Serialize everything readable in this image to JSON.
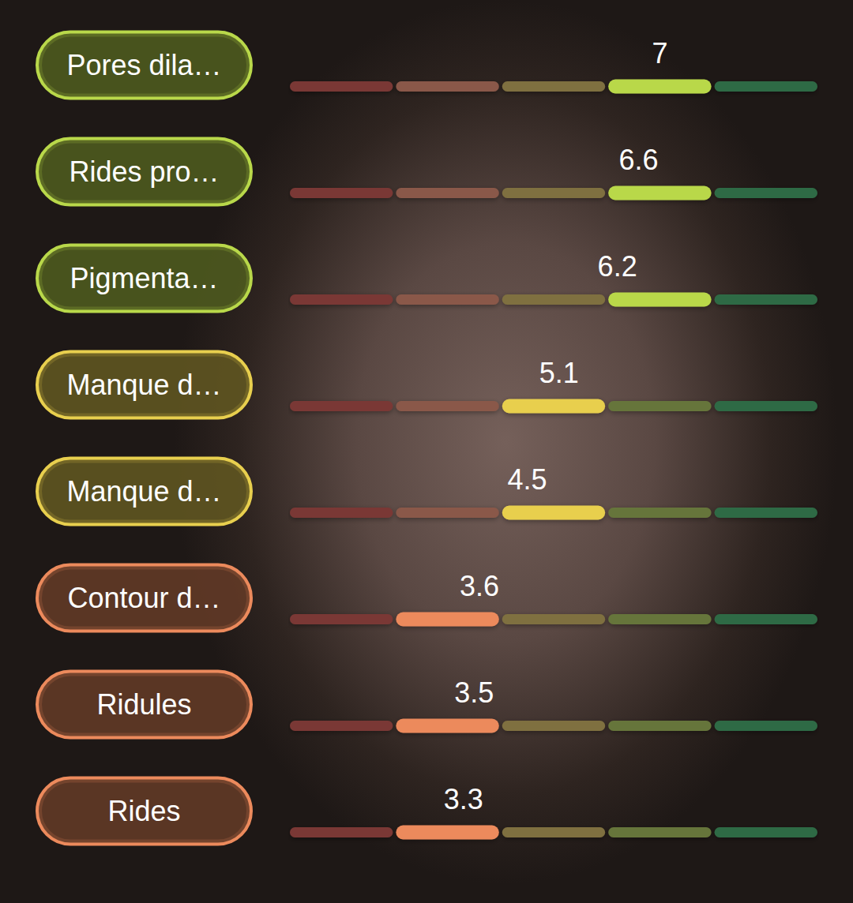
{
  "chart_data": {
    "type": "bar",
    "orientation": "horizontal",
    "categories": [
      "Pores dila…",
      "Rides pro…",
      "Pigmenta…",
      "Manque d…",
      "Manque d…",
      "Contour d…",
      "Ridules",
      "Rides"
    ],
    "values": [
      7,
      6.6,
      6.2,
      5.1,
      4.5,
      3.6,
      3.5,
      3.3
    ],
    "colors": [
      "#b9d84a",
      "#b9d84a",
      "#b9d84a",
      "#e8cf4e",
      "#e8cf4e",
      "#ec8a5c",
      "#ec8a5c",
      "#ec8a5c"
    ],
    "xlim": [
      0,
      10
    ],
    "xticks": [
      0,
      2,
      4,
      6,
      8,
      10
    ],
    "grid": false,
    "tick_labels": false,
    "data_labels": true
  }
}
